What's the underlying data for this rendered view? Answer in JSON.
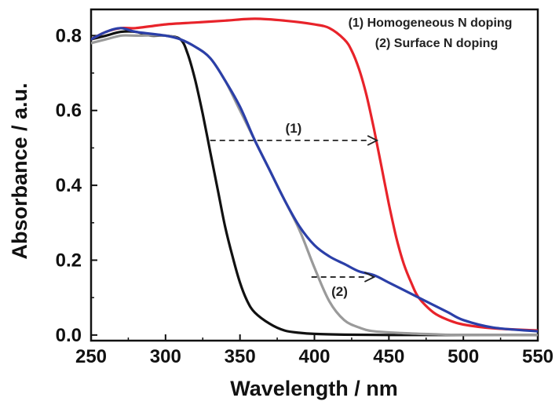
{
  "chart_data": {
    "type": "line",
    "title": "",
    "xlabel": "Wavelength / nm",
    "ylabel": "Absorbance / a.u.",
    "xlim": [
      250,
      550
    ],
    "ylim": [
      -0.015,
      0.87
    ],
    "xticks": [
      250,
      300,
      350,
      400,
      450,
      500,
      550
    ],
    "yticks": [
      0.0,
      0.2,
      0.4,
      0.6,
      0.8
    ],
    "xtick_labels": [
      "250",
      "300",
      "350",
      "400",
      "450",
      "500",
      "550"
    ],
    "ytick_labels": [
      "0.0",
      "0.2",
      "0.4",
      "0.6",
      "0.8"
    ],
    "grid": false,
    "legend": {
      "placement": "top-right",
      "entries": [
        "(1) Homogeneous N doping",
        "(2) Surface N doping"
      ]
    },
    "series": [
      {
        "color": "#111111",
        "x": [
          250,
          260,
          270,
          280,
          290,
          300,
          310,
          315,
          320,
          325,
          330,
          335,
          340,
          345,
          350,
          355,
          360,
          370,
          380,
          390,
          400,
          420,
          450,
          500,
          550
        ],
        "y": [
          0.79,
          0.8,
          0.81,
          0.81,
          0.8,
          0.8,
          0.79,
          0.75,
          0.68,
          0.59,
          0.49,
          0.39,
          0.29,
          0.21,
          0.14,
          0.09,
          0.06,
          0.03,
          0.012,
          0.006,
          0.003,
          0.001,
          0.0,
          0.0,
          0.0
        ]
      },
      {
        "color": "#e8232a",
        "x": [
          250,
          260,
          270,
          280,
          300,
          320,
          340,
          360,
          380,
          400,
          410,
          420,
          425,
          430,
          435,
          440,
          445,
          450,
          455,
          460,
          465,
          470,
          480,
          490,
          500,
          520,
          550
        ],
        "y": [
          0.79,
          0.81,
          0.82,
          0.82,
          0.83,
          0.835,
          0.84,
          0.845,
          0.84,
          0.83,
          0.82,
          0.79,
          0.76,
          0.71,
          0.64,
          0.55,
          0.45,
          0.35,
          0.26,
          0.19,
          0.14,
          0.1,
          0.06,
          0.04,
          0.028,
          0.018,
          0.012
        ]
      },
      {
        "color": "#9a9a9a",
        "x": [
          250,
          260,
          270,
          280,
          300,
          310,
          320,
          330,
          340,
          350,
          360,
          370,
          380,
          390,
          400,
          410,
          420,
          430,
          440,
          460,
          480,
          500,
          550
        ],
        "y": [
          0.78,
          0.79,
          0.8,
          0.8,
          0.8,
          0.79,
          0.77,
          0.74,
          0.68,
          0.6,
          0.52,
          0.44,
          0.36,
          0.28,
          0.18,
          0.09,
          0.04,
          0.02,
          0.01,
          0.005,
          0.002,
          0.0,
          0.0
        ]
      },
      {
        "color": "#2b3fa8",
        "x": [
          250,
          260,
          270,
          280,
          300,
          310,
          320,
          330,
          340,
          350,
          360,
          370,
          380,
          390,
          400,
          410,
          420,
          430,
          440,
          450,
          460,
          470,
          480,
          490,
          500,
          520,
          550
        ],
        "y": [
          0.79,
          0.81,
          0.82,
          0.81,
          0.8,
          0.79,
          0.77,
          0.74,
          0.68,
          0.61,
          0.52,
          0.44,
          0.36,
          0.29,
          0.24,
          0.21,
          0.19,
          0.17,
          0.16,
          0.14,
          0.12,
          0.1,
          0.08,
          0.06,
          0.04,
          0.02,
          0.01
        ]
      }
    ],
    "annotations": [
      {
        "label": "(1)",
        "from": [
          330,
          0.52
        ],
        "to": [
          442,
          0.52
        ]
      },
      {
        "label": "(2)",
        "from": [
          398,
          0.155
        ],
        "to": [
          440,
          0.155
        ]
      }
    ]
  }
}
